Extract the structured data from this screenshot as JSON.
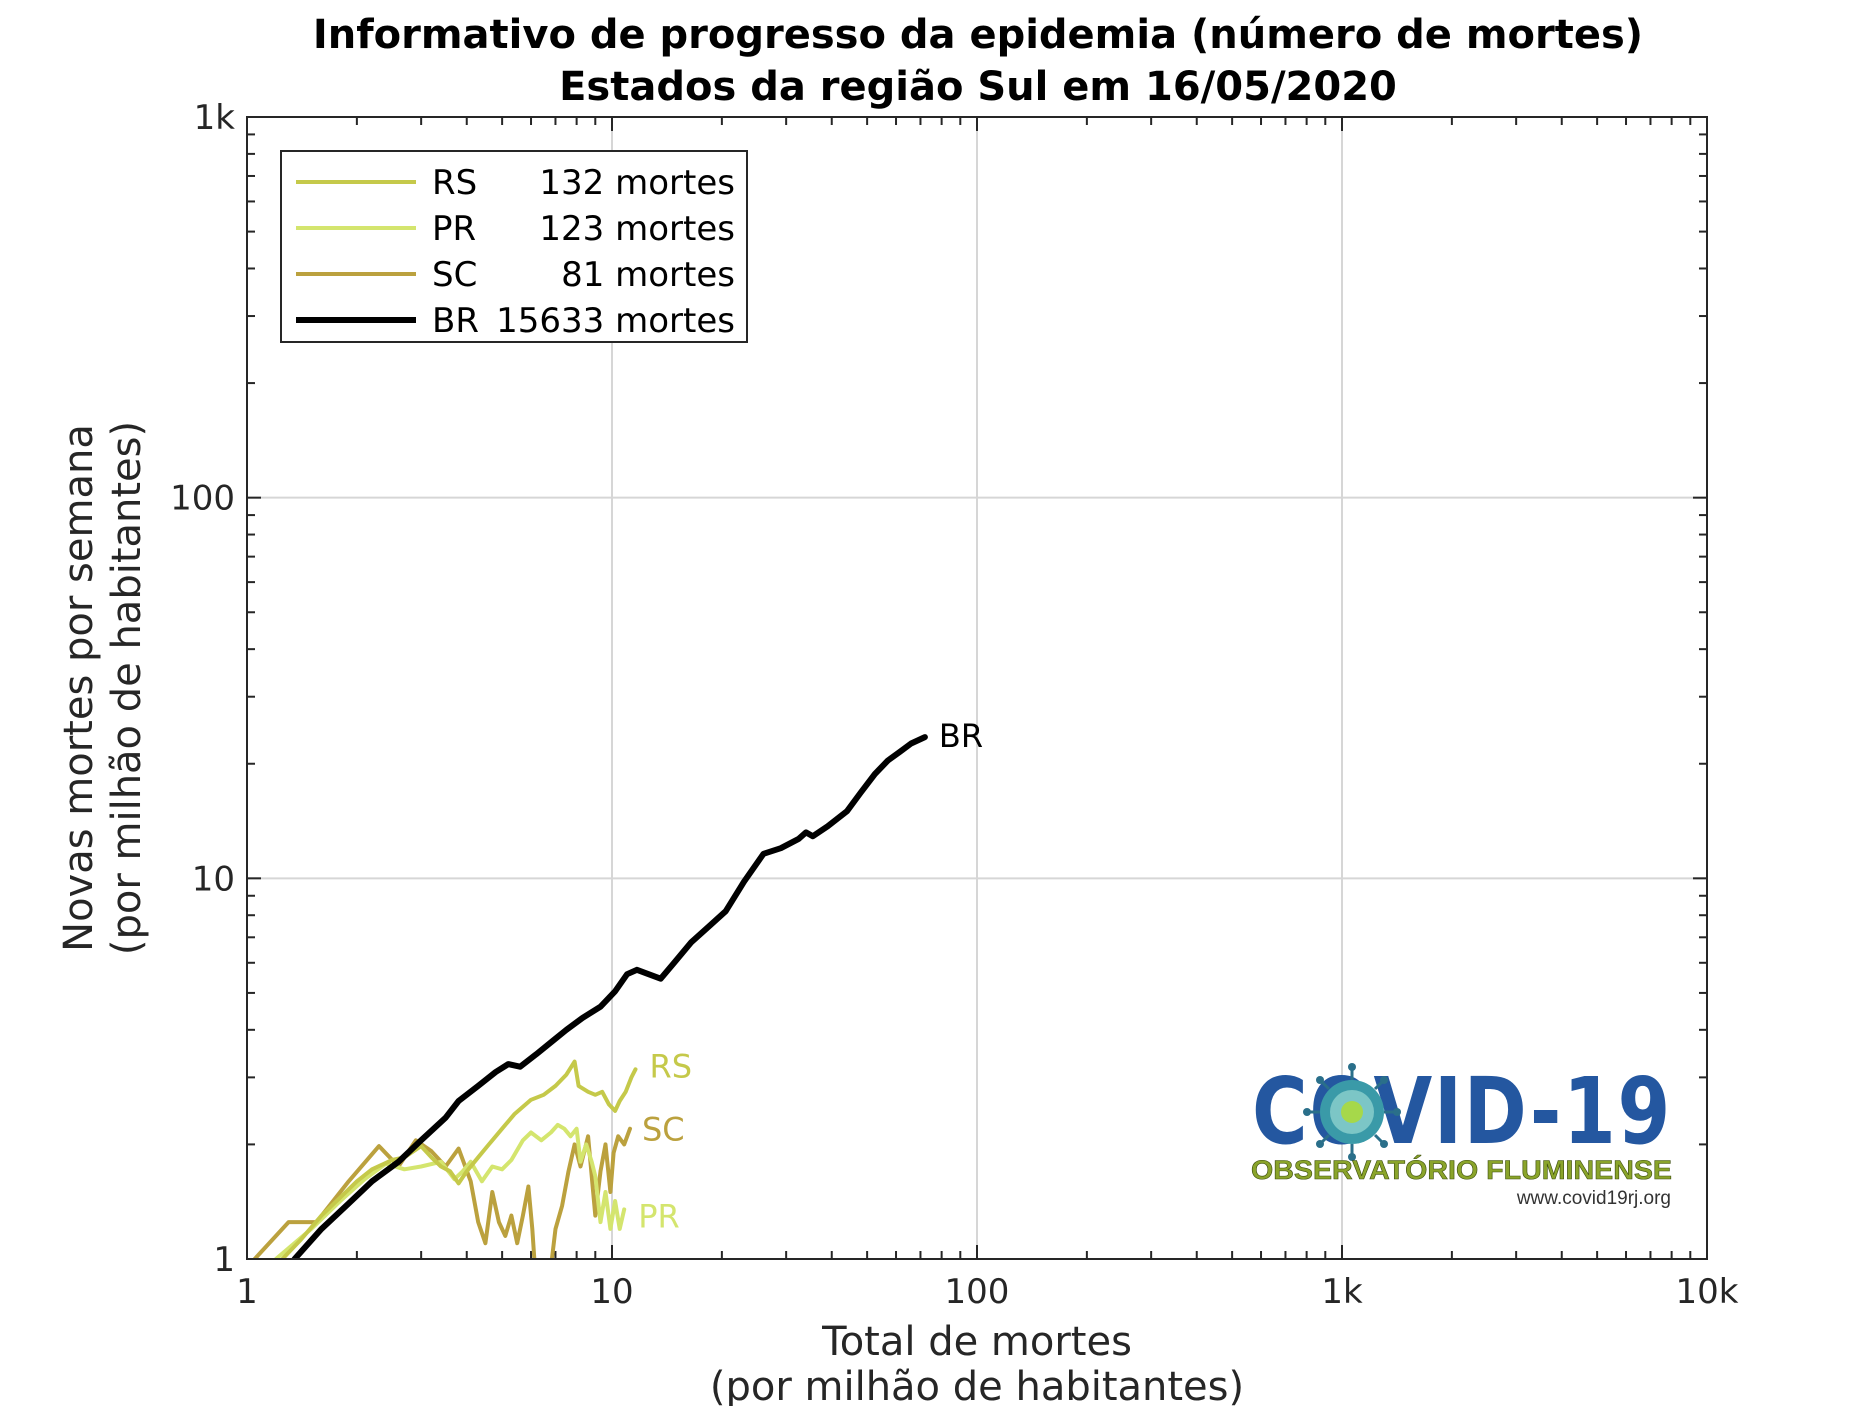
{
  "chart_data": {
    "type": "line",
    "title": "Informativo de progresso da epidemia (número de mortes)",
    "subtitle": "Estados da região Sul em 16/05/2020",
    "xlabel": "Total de mortes",
    "xlabel2": "(por milhão de habitantes)",
    "ylabel": "Novas mortes por semana",
    "ylabel2": "(por milhão de habitantes)",
    "xscale": "log",
    "yscale": "log",
    "xlim": [
      1,
      10000
    ],
    "ylim": [
      1,
      1000
    ],
    "xticks": [
      1,
      10,
      100,
      1000,
      10000
    ],
    "xtick_labels": [
      "1",
      "10",
      "100",
      "1k",
      "10k"
    ],
    "yticks": [
      1,
      10,
      100,
      1000
    ],
    "ytick_labels": [
      "1",
      "10",
      "100",
      "1k"
    ],
    "grid": true,
    "legend_position": "top-left",
    "series": [
      {
        "name": "RS",
        "legend_label": "132 mortes",
        "end_label": "RS",
        "color": "#c5c94a",
        "points": [
          [
            1.25,
            1.0
          ],
          [
            1.4,
            1.12
          ],
          [
            1.6,
            1.3
          ],
          [
            1.8,
            1.45
          ],
          [
            2.0,
            1.6
          ],
          [
            2.2,
            1.72
          ],
          [
            2.5,
            1.82
          ],
          [
            2.7,
            1.85
          ],
          [
            3.0,
            1.98
          ],
          [
            3.2,
            1.85
          ],
          [
            3.4,
            1.75
          ],
          [
            3.6,
            1.7
          ],
          [
            3.8,
            1.58
          ],
          [
            4.0,
            1.7
          ],
          [
            4.3,
            1.85
          ],
          [
            4.6,
            2.0
          ],
          [
            5.0,
            2.2
          ],
          [
            5.4,
            2.4
          ],
          [
            6.0,
            2.62
          ],
          [
            6.5,
            2.7
          ],
          [
            7.0,
            2.85
          ],
          [
            7.5,
            3.05
          ],
          [
            7.9,
            3.3
          ],
          [
            8.1,
            2.85
          ],
          [
            8.6,
            2.75
          ],
          [
            9.0,
            2.7
          ],
          [
            9.4,
            2.75
          ],
          [
            9.8,
            2.55
          ],
          [
            10.2,
            2.45
          ],
          [
            10.5,
            2.6
          ],
          [
            10.9,
            2.75
          ],
          [
            11.3,
            3.0
          ],
          [
            11.6,
            3.15
          ]
        ]
      },
      {
        "name": "PR",
        "legend_label": "123 mortes",
        "end_label": "PR",
        "color": "#d4e56e",
        "points": [
          [
            1.2,
            1.0
          ],
          [
            1.5,
            1.2
          ],
          [
            1.8,
            1.42
          ],
          [
            2.1,
            1.62
          ],
          [
            2.4,
            1.78
          ],
          [
            2.7,
            1.72
          ],
          [
            3.0,
            1.75
          ],
          [
            3.4,
            1.8
          ],
          [
            3.7,
            1.62
          ],
          [
            3.9,
            1.7
          ],
          [
            4.1,
            1.8
          ],
          [
            4.4,
            1.6
          ],
          [
            4.7,
            1.75
          ],
          [
            5.0,
            1.72
          ],
          [
            5.3,
            1.82
          ],
          [
            5.7,
            2.05
          ],
          [
            6.0,
            2.15
          ],
          [
            6.4,
            2.05
          ],
          [
            6.8,
            2.15
          ],
          [
            7.1,
            2.25
          ],
          [
            7.4,
            2.2
          ],
          [
            7.7,
            2.1
          ],
          [
            8.0,
            2.2
          ],
          [
            8.2,
            1.8
          ],
          [
            8.5,
            2.0
          ],
          [
            8.8,
            1.8
          ],
          [
            9.0,
            1.65
          ],
          [
            9.3,
            1.25
          ],
          [
            9.6,
            1.5
          ],
          [
            9.9,
            1.2
          ],
          [
            10.2,
            1.42
          ],
          [
            10.5,
            1.2
          ],
          [
            10.8,
            1.35
          ]
        ]
      },
      {
        "name": "SC",
        "legend_label": "81 mortes",
        "end_label": "SC",
        "color": "#bba13e",
        "points": [
          [
            1.05,
            1.0
          ],
          [
            1.3,
            1.25
          ],
          [
            1.55,
            1.25
          ],
          [
            1.9,
            1.6
          ],
          [
            2.3,
            1.98
          ],
          [
            2.6,
            1.75
          ],
          [
            2.9,
            2.05
          ],
          [
            3.2,
            1.92
          ],
          [
            3.5,
            1.75
          ],
          [
            3.8,
            1.95
          ],
          [
            4.1,
            1.6
          ],
          [
            4.3,
            1.25
          ],
          [
            4.5,
            1.1
          ],
          [
            4.7,
            1.5
          ],
          [
            4.9,
            1.25
          ],
          [
            5.1,
            1.15
          ],
          [
            5.3,
            1.3
          ],
          [
            5.5,
            1.1
          ],
          [
            5.7,
            1.3
          ],
          [
            5.9,
            1.55
          ],
          [
            6.05,
            1.2
          ],
          [
            6.15,
            0.95
          ],
          [
            6.8,
            0.95
          ],
          [
            7.0,
            1.2
          ],
          [
            7.3,
            1.38
          ],
          [
            7.6,
            1.7
          ],
          [
            7.9,
            2.0
          ],
          [
            8.2,
            1.75
          ],
          [
            8.6,
            2.1
          ],
          [
            9.0,
            1.3
          ],
          [
            9.3,
            1.7
          ],
          [
            9.6,
            2.0
          ],
          [
            9.9,
            1.5
          ],
          [
            10.1,
            1.9
          ],
          [
            10.4,
            2.1
          ],
          [
            10.8,
            2.0
          ],
          [
            11.2,
            2.2
          ]
        ]
      },
      {
        "name": "BR",
        "legend_label": "15633 mortes",
        "end_label": "BR",
        "color": "#000000",
        "points": [
          [
            1.35,
            1.0
          ],
          [
            1.6,
            1.2
          ],
          [
            1.9,
            1.4
          ],
          [
            2.2,
            1.6
          ],
          [
            2.6,
            1.8
          ],
          [
            3.0,
            2.05
          ],
          [
            3.5,
            2.35
          ],
          [
            3.8,
            2.6
          ],
          [
            4.3,
            2.85
          ],
          [
            4.8,
            3.1
          ],
          [
            5.2,
            3.25
          ],
          [
            5.6,
            3.2
          ],
          [
            6.2,
            3.45
          ],
          [
            6.9,
            3.75
          ],
          [
            7.5,
            4.0
          ],
          [
            8.3,
            4.3
          ],
          [
            9.3,
            4.6
          ],
          [
            10.2,
            5.05
          ],
          [
            11.0,
            5.6
          ],
          [
            11.7,
            5.75
          ],
          [
            12.6,
            5.6
          ],
          [
            13.6,
            5.45
          ],
          [
            14.8,
            6.0
          ],
          [
            16.5,
            6.8
          ],
          [
            18.5,
            7.5
          ],
          [
            20.5,
            8.2
          ],
          [
            23.0,
            9.8
          ],
          [
            26.0,
            11.6
          ],
          [
            29.0,
            12.0
          ],
          [
            32.5,
            12.7
          ],
          [
            34.0,
            13.2
          ],
          [
            35.5,
            12.9
          ],
          [
            39.0,
            13.7
          ],
          [
            44.0,
            15.0
          ],
          [
            48.0,
            16.8
          ],
          [
            52.5,
            18.8
          ],
          [
            57.0,
            20.4
          ],
          [
            61.5,
            21.5
          ],
          [
            66.0,
            22.6
          ],
          [
            72.0,
            23.5
          ]
        ]
      }
    ]
  },
  "logo": {
    "covid_text": "COVID-19",
    "subtitle": "OBSERVATÓRIO FLUMINENSE",
    "url": "www.covid19rj.org",
    "color_blue": "#2457a0",
    "color_green": "#8aa42a"
  }
}
